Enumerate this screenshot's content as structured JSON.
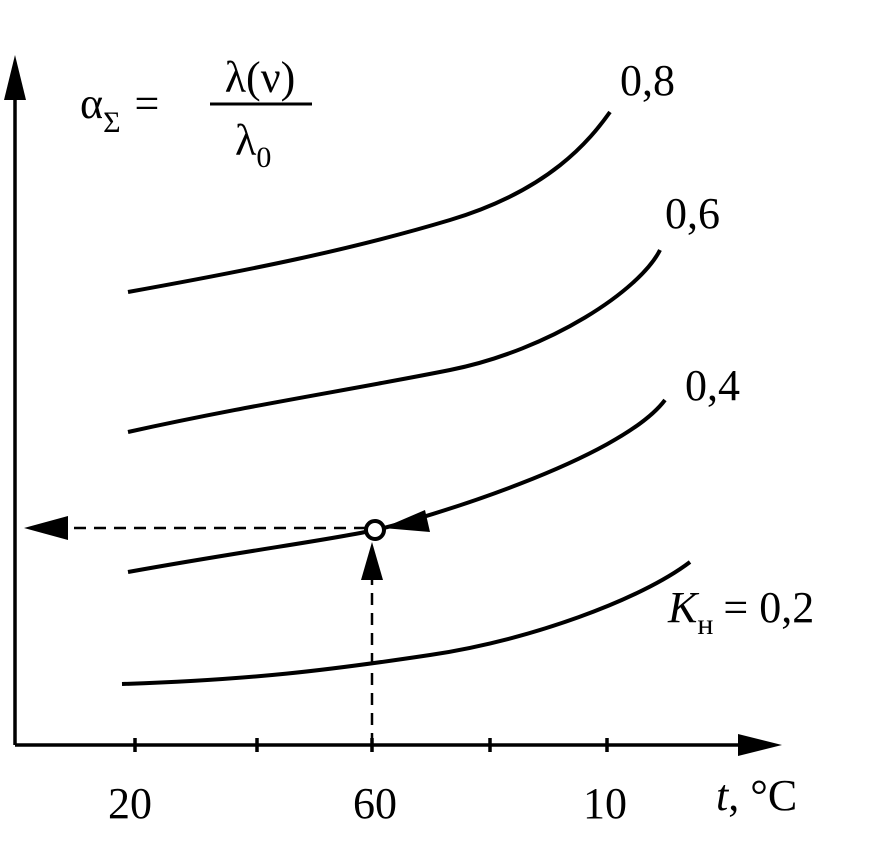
{
  "y_axis_label": {
    "symbol": "α",
    "subscript": "Σ",
    "equals": "=",
    "numerator": "λ(ν)",
    "denominator": "λ",
    "denominator_subscript": "0"
  },
  "x_axis_label": {
    "variable": "t",
    "unit": ", °C"
  },
  "x_tick_labels": [
    "20",
    "60",
    "10"
  ],
  "curve_labels": [
    "0,8",
    "0,6",
    "0,4"
  ],
  "base_curve_label": {
    "symbol": "K",
    "subscript": "н",
    "text": "= 0,2"
  }
}
